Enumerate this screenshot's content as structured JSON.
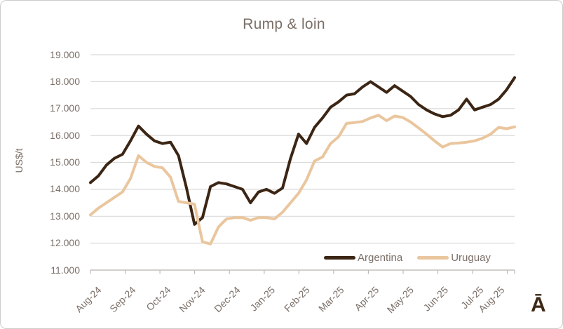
{
  "chart_data": {
    "type": "line",
    "title": "Rump & loin",
    "ylabel": "US$/t",
    "ylim": [
      11000,
      19000
    ],
    "grid": "horizontal",
    "legend_position": "inside-bottom-right",
    "yticks": {
      "values": [
        11000,
        12000,
        13000,
        14000,
        15000,
        16000,
        17000,
        18000,
        19000
      ],
      "labels": [
        "11.000",
        "12.000",
        "13.000",
        "14.000",
        "15.000",
        "16.000",
        "17.000",
        "18.000",
        "19.000"
      ]
    },
    "categories": [
      "Aug-24",
      "Sep-24",
      "Oct-24",
      "Nov-24",
      "Dec-24",
      "Jan-25",
      "Feb-25",
      "Mar-25",
      "Apr-25",
      "May-25",
      "Jun-25",
      "Jul-25",
      "Aug-25"
    ],
    "x_unit": "week",
    "series": [
      {
        "name": "Argentina",
        "color": "#3b2514",
        "values": [
          14250,
          14500,
          14900,
          15150,
          15300,
          15800,
          16350,
          16050,
          15800,
          15700,
          15750,
          15250,
          14050,
          12700,
          12950,
          14100,
          14250,
          14200,
          14100,
          14000,
          13500,
          13900,
          14000,
          13850,
          14050,
          15150,
          16050,
          15700,
          16300,
          16650,
          17050,
          17250,
          17500,
          17550,
          17800,
          18000,
          17800,
          17600,
          17850,
          17650,
          17450,
          17150,
          16950,
          16800,
          16700,
          16750,
          16950,
          17350,
          16950,
          17050,
          17150,
          17350,
          17700,
          18150
        ]
      },
      {
        "name": "Uruguay",
        "color": "#eac69e",
        "values": [
          13050,
          13300,
          13500,
          13700,
          13900,
          14400,
          15250,
          15000,
          14850,
          14800,
          14450,
          13550,
          13500,
          13450,
          12050,
          11970,
          12600,
          12900,
          12950,
          12950,
          12850,
          12950,
          12950,
          12900,
          13150,
          13500,
          13850,
          14350,
          15050,
          15200,
          15700,
          15950,
          16450,
          16480,
          16520,
          16650,
          16750,
          16550,
          16720,
          16670,
          16500,
          16280,
          16050,
          15800,
          15570,
          15700,
          15720,
          15750,
          15800,
          15900,
          16050,
          16300,
          16250,
          16320
        ]
      }
    ],
    "colors": {
      "text": "#7b6f68",
      "gridline": "#d9d9d9",
      "axis": "#bfb8b4"
    }
  },
  "branding": {
    "logo_text": "Ā"
  }
}
